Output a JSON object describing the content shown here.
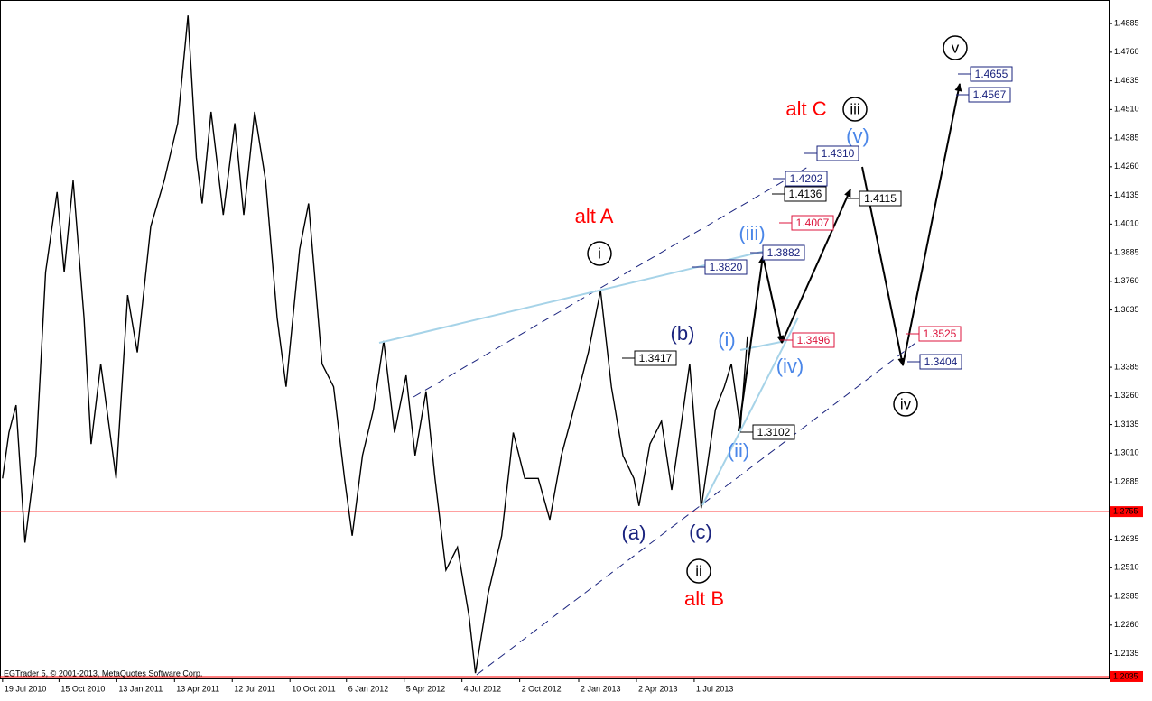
{
  "chart_data": {
    "type": "line",
    "footer": "EGTrader 5, © 2001-2013, MetaQuotes Software Corp.",
    "color": "#000000",
    "x": [
      "2010-07-19",
      "2010-07-29",
      "2010-08-09",
      "2010-08-23",
      "2010-09-09",
      "2010-09-24",
      "2010-10-12",
      "2010-10-23",
      "2010-11-06",
      "2010-11-23",
      "2010-12-04",
      "2010-12-19",
      "2011-01-12",
      "2011-01-30",
      "2011-02-14",
      "2011-03-07",
      "2011-03-28",
      "2011-04-18",
      "2011-05-04",
      "2011-05-17",
      "2011-05-26",
      "2011-06-09",
      "2011-06-28",
      "2011-07-16",
      "2011-07-30",
      "2011-08-16",
      "2011-09-02",
      "2011-09-20",
      "2011-10-04",
      "2011-10-25",
      "2011-11-08",
      "2011-11-29",
      "2011-12-17",
      "2012-01-03",
      "2012-01-15",
      "2012-01-31",
      "2012-02-17",
      "2012-03-04",
      "2012-03-21",
      "2012-04-08",
      "2012-04-22",
      "2012-05-09",
      "2012-05-23",
      "2012-06-09",
      "2012-06-27",
      "2012-07-15",
      "2012-07-25",
      "2012-08-14",
      "2012-09-04",
      "2012-09-22",
      "2012-10-10",
      "2012-10-31",
      "2012-11-18",
      "2012-12-06",
      "2012-12-27",
      "2013-01-17",
      "2013-02-05",
      "2013-02-22",
      "2013-03-12",
      "2013-03-29",
      "2013-04-06",
      "2013-04-23",
      "2013-05-11",
      "2013-05-27",
      "2013-06-14",
      "2013-06-24",
      "2013-07-12",
      "2013-08-03",
      "2013-08-17",
      "2013-08-28",
      "2013-09-11",
      "2013-09-22"
    ],
    "values": [
      1.29,
      1.31,
      1.322,
      1.262,
      1.3,
      1.38,
      1.415,
      1.38,
      1.42,
      1.36,
      1.305,
      1.34,
      1.29,
      1.37,
      1.345,
      1.4,
      1.42,
      1.445,
      1.492,
      1.43,
      1.41,
      1.45,
      1.405,
      1.445,
      1.405,
      1.45,
      1.42,
      1.36,
      1.33,
      1.39,
      1.41,
      1.34,
      1.33,
      1.29,
      1.265,
      1.3,
      1.32,
      1.35,
      1.31,
      1.335,
      1.3,
      1.328,
      1.29,
      1.25,
      1.26,
      1.23,
      1.205,
      1.24,
      1.265,
      1.31,
      1.29,
      1.29,
      1.272,
      1.3,
      1.322,
      1.345,
      1.372,
      1.33,
      1.3,
      1.29,
      1.278,
      1.305,
      1.315,
      1.285,
      1.32,
      1.34,
      1.277,
      1.32,
      1.33,
      1.34,
      1.312,
      1.352
    ],
    "xlim": [
      "2010-07-15",
      "2015-04-08"
    ],
    "xticks": [
      {
        "value": "2010-07-19",
        "label": "19 Jul 2010"
      },
      {
        "value": "2010-10-15",
        "label": "15 Oct 2010"
      },
      {
        "value": "2011-01-13",
        "label": "13 Jan 2011"
      },
      {
        "value": "2011-04-13",
        "label": "13 Apr 2011"
      },
      {
        "value": "2011-07-12",
        "label": "12 Jul 2011"
      },
      {
        "value": "2011-10-10",
        "label": "10 Oct 2011"
      },
      {
        "value": "2012-01-06",
        "label": "6 Jan 2012"
      },
      {
        "value": "2012-04-05",
        "label": "5 Apr 2012"
      },
      {
        "value": "2012-07-04",
        "label": "4 Jul 2012"
      },
      {
        "value": "2012-10-02",
        "label": "2 Oct 2012"
      },
      {
        "value": "2013-01-02",
        "label": "2 Jan 2013"
      },
      {
        "value": "2013-04-02",
        "label": "2 Apr 2013"
      },
      {
        "value": "2013-07-01",
        "label": "1 Jul 2013"
      }
    ],
    "ylim": [
      1.2027,
      1.4976
    ],
    "yticks": [
      1.2135,
      {
        "value": 1.226,
        "label": "1.2260"
      },
      1.2385,
      {
        "value": 1.251,
        "label": "1.2510"
      },
      1.2635,
      1.2885,
      {
        "value": 1.301,
        "label": "1.3010"
      },
      1.3135,
      {
        "value": 1.326,
        "label": "1.3260"
      },
      1.3385,
      1.3635,
      {
        "value": 1.376,
        "label": "1.3760"
      },
      1.3885,
      {
        "value": 1.401,
        "label": "1.4010"
      },
      1.4135,
      {
        "value": 1.426,
        "label": "1.4260"
      },
      1.4385,
      {
        "value": 1.451,
        "label": "1.4510"
      },
      1.4635,
      {
        "value": 1.476,
        "label": "1.4760"
      },
      1.4885
    ],
    "levels": [
      {
        "value": 1.2755,
        "label": "1.2755"
      },
      {
        "value": 1.2035,
        "label": "1.2035"
      }
    ],
    "level_color": "#ff0000",
    "wave_labels": [
      "alt A",
      "i",
      "alt C",
      "iii",
      "v",
      "(v)",
      "(iii)",
      "(b)",
      "(i)",
      "(iv)",
      "(ii)",
      "(a)",
      "(c)",
      "ii",
      "alt B",
      "iv"
    ],
    "price_boxes": [
      "1.4655",
      "1.4567",
      "1.4310",
      "1.4202",
      "1.4136",
      "1.4115",
      "1.4007",
      "1.3882",
      "1.3820",
      "1.3496",
      "1.3525",
      "1.3417",
      "1.3404",
      "1.3102"
    ]
  }
}
